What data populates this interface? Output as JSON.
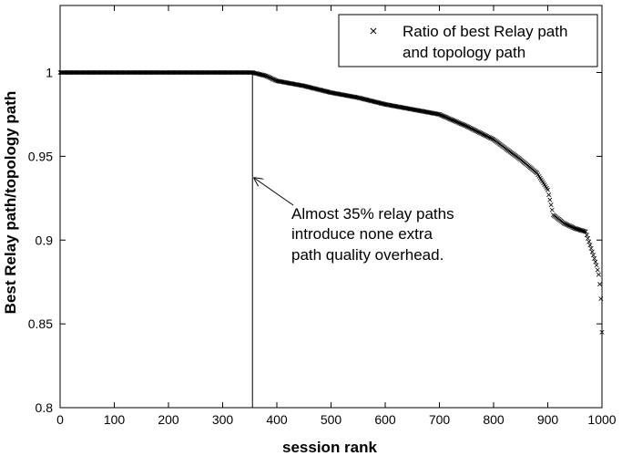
{
  "chart_data": {
    "type": "scatter",
    "xlabel": "session rank",
    "ylabel": "Best Relay path/topology path",
    "xlim": [
      0,
      1000
    ],
    "ylim": [
      0.8,
      1.04
    ],
    "xticks": [
      0,
      100,
      200,
      300,
      400,
      500,
      600,
      700,
      800,
      900,
      1000
    ],
    "yticks": [
      0.8,
      0.85,
      0.9,
      0.95,
      1.0
    ],
    "ytick_labels": [
      "0.8",
      "0.85",
      "0.9",
      "0.95",
      "1"
    ],
    "grid": false,
    "legend_position": "top-right",
    "marker": "x",
    "series": [
      {
        "name": "Ratio of best Relay path and topology path",
        "curve": [
          [
            0,
            1.0
          ],
          [
            355,
            1.0
          ],
          [
            380,
            0.998
          ],
          [
            400,
            0.995
          ],
          [
            450,
            0.992
          ],
          [
            500,
            0.988
          ],
          [
            550,
            0.985
          ],
          [
            600,
            0.981
          ],
          [
            650,
            0.978
          ],
          [
            700,
            0.975
          ],
          [
            750,
            0.968
          ],
          [
            800,
            0.96
          ],
          [
            850,
            0.948
          ],
          [
            880,
            0.94
          ],
          [
            900,
            0.93
          ],
          [
            910,
            0.915
          ],
          [
            930,
            0.91
          ],
          [
            950,
            0.907
          ],
          [
            970,
            0.905
          ],
          [
            980,
            0.895
          ],
          [
            990,
            0.885
          ],
          [
            995,
            0.878
          ],
          [
            998,
            0.865
          ],
          [
            1000,
            0.845
          ]
        ]
      }
    ],
    "vline_x": 355,
    "annotation": {
      "lines": [
        "Almost 35% relay paths",
        "introduce none extra",
        "path quality overhead."
      ],
      "arrow_to": [
        355,
        0.937
      ]
    },
    "legend_lines": [
      "Ratio of best Relay path",
      "and topology path"
    ]
  }
}
